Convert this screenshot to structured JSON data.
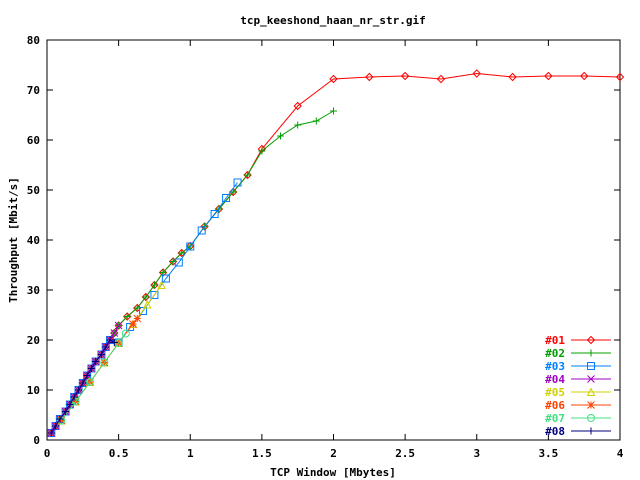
{
  "chart_data": {
    "type": "line",
    "title": "tcp_keeshond_haan_nr_str.gif",
    "xlabel": "TCP Window [Mbytes]",
    "ylabel": "Throughput [Mbit/s]",
    "xlim": [
      0,
      4
    ],
    "ylim": [
      0,
      80
    ],
    "x_ticks": [
      "0",
      "0.5",
      "1",
      "1.5",
      "2",
      "2.5",
      "3",
      "3.5",
      "4"
    ],
    "y_ticks": [
      "0",
      "10",
      "20",
      "30",
      "40",
      "50",
      "60",
      "70",
      "80"
    ],
    "grid": false,
    "legend_position": "bottom-right",
    "series": [
      {
        "name": "#01",
        "color": "#ff0000",
        "marker": "diamond",
        "x": [
          0.03,
          0.06,
          0.09,
          0.13,
          0.16,
          0.19,
          0.22,
          0.25,
          0.28,
          0.31,
          0.34,
          0.38,
          0.41,
          0.44,
          0.47,
          0.5,
          0.56,
          0.63,
          0.69,
          0.75,
          0.81,
          0.88,
          0.94,
          1.0,
          1.1,
          1.2,
          1.3,
          1.4,
          1.5,
          1.75,
          2.0,
          2.25,
          2.5,
          2.75,
          3.0,
          3.25,
          3.5,
          3.75,
          4.0
        ],
        "y": [
          1.4,
          2.8,
          4.2,
          5.7,
          7.1,
          8.6,
          10.0,
          11.4,
          12.9,
          14.3,
          15.7,
          17.1,
          18.6,
          20.0,
          21.4,
          22.9,
          24.7,
          26.4,
          28.6,
          31.0,
          33.5,
          35.7,
          37.4,
          38.8,
          42.7,
          46.2,
          49.6,
          53.0,
          58.2,
          66.8,
          72.2,
          72.6,
          72.8,
          72.2,
          73.3,
          72.6,
          72.8,
          72.8,
          72.6
        ]
      },
      {
        "name": "#02",
        "color": "#00a000",
        "marker": "plus",
        "x": [
          0.03,
          0.06,
          0.09,
          0.13,
          0.16,
          0.19,
          0.22,
          0.25,
          0.28,
          0.31,
          0.34,
          0.38,
          0.41,
          0.44,
          0.47,
          0.5,
          0.56,
          0.63,
          0.69,
          0.75,
          0.81,
          0.88,
          0.94,
          1.0,
          1.1,
          1.2,
          1.3,
          1.4,
          1.5,
          1.63,
          1.75,
          1.88,
          2.0
        ],
        "y": [
          1.4,
          2.8,
          4.2,
          5.7,
          7.1,
          8.6,
          10.0,
          11.4,
          12.9,
          14.3,
          15.7,
          17.1,
          18.6,
          20.0,
          21.4,
          22.9,
          24.7,
          26.4,
          28.6,
          31.0,
          33.5,
          35.7,
          37.4,
          38.8,
          42.7,
          46.2,
          49.6,
          53.0,
          57.8,
          60.8,
          63.0,
          63.8,
          65.8
        ]
      },
      {
        "name": "#03",
        "color": "#0080ff",
        "marker": "square",
        "x": [
          0.03,
          0.06,
          0.09,
          0.13,
          0.16,
          0.19,
          0.22,
          0.25,
          0.28,
          0.31,
          0.34,
          0.38,
          0.41,
          0.44,
          0.5,
          0.58,
          0.67,
          0.75,
          0.83,
          0.92,
          1.0,
          1.08,
          1.17,
          1.25,
          1.33
        ],
        "y": [
          1.4,
          2.8,
          4.2,
          5.7,
          7.1,
          8.6,
          10.0,
          11.4,
          12.9,
          14.3,
          15.7,
          17.1,
          18.6,
          20.0,
          19.5,
          22.6,
          25.8,
          29.0,
          32.3,
          35.5,
          38.7,
          41.9,
          45.2,
          48.4,
          51.5
        ]
      },
      {
        "name": "#04",
        "color": "#a000c0",
        "marker": "cross",
        "x": [
          0.03,
          0.06,
          0.09,
          0.13,
          0.16,
          0.19,
          0.22,
          0.25,
          0.28,
          0.31,
          0.34,
          0.38,
          0.41,
          0.44,
          0.47,
          0.5
        ],
        "y": [
          1.4,
          2.8,
          4.2,
          5.7,
          7.1,
          8.6,
          10.0,
          11.4,
          12.9,
          14.3,
          15.7,
          17.1,
          18.6,
          20.0,
          21.4,
          22.9
        ]
      },
      {
        "name": "#05",
        "color": "#d0d000",
        "marker": "triangle",
        "x": [
          0.1,
          0.2,
          0.3,
          0.4,
          0.5,
          0.6,
          0.7,
          0.8
        ],
        "y": [
          3.9,
          7.7,
          11.6,
          15.5,
          19.4,
          23.2,
          27.1,
          31.0
        ]
      },
      {
        "name": "#06",
        "color": "#ff4000",
        "marker": "star",
        "x": [
          0.1,
          0.2,
          0.3,
          0.4,
          0.5,
          0.6,
          0.63
        ],
        "y": [
          3.9,
          7.7,
          11.6,
          15.5,
          19.4,
          23.2,
          24.3
        ]
      },
      {
        "name": "#07",
        "color": "#40e080",
        "marker": "circle",
        "x": [
          0.1,
          0.2,
          0.3,
          0.4,
          0.5,
          0.55
        ],
        "y": [
          3.9,
          7.7,
          11.6,
          15.5,
          19.4,
          21.3
        ]
      },
      {
        "name": "#08",
        "color": "#000080",
        "marker": "plus",
        "x": [
          0.03,
          0.06,
          0.09,
          0.13,
          0.16,
          0.19,
          0.22,
          0.25,
          0.28,
          0.31,
          0.34,
          0.38,
          0.41,
          0.44,
          0.47
        ],
        "y": [
          1.4,
          2.8,
          4.2,
          5.7,
          7.1,
          8.6,
          10.0,
          11.4,
          12.9,
          14.3,
          15.7,
          17.1,
          18.6,
          20.0,
          19.5
        ]
      }
    ]
  }
}
